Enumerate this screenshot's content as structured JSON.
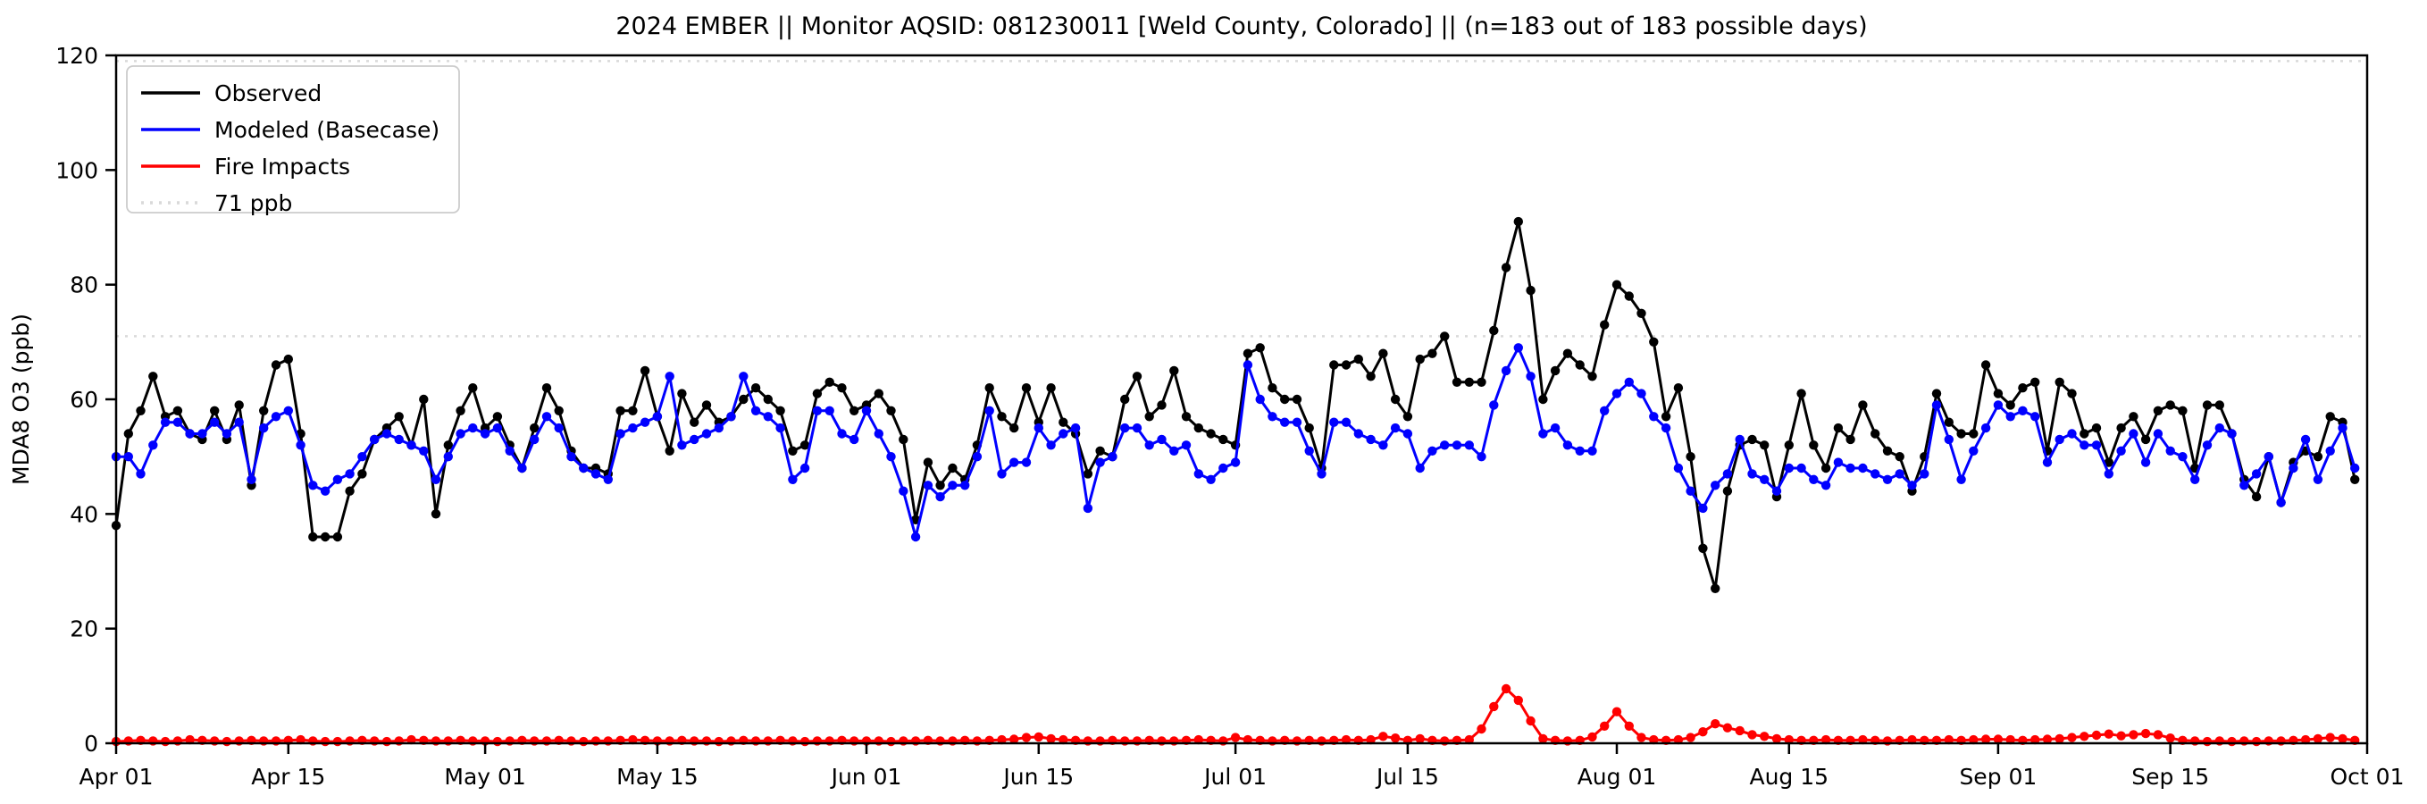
{
  "chart_data": {
    "type": "line",
    "title": "2024 EMBER || Monitor AQSID: 081230011 [Weld County, Colorado] || (n=183 out of 183 possible days)",
    "xlabel": "",
    "ylabel": "MDA8 O3 (ppb)",
    "ylim": [
      0,
      120
    ],
    "yticks": [
      0,
      20,
      40,
      60,
      80,
      100,
      120
    ],
    "n_days": 183,
    "date_range": "Apr 01 - Sep 30",
    "grid": false,
    "legend_position": "upper left",
    "xticks": [
      {
        "label": "Apr 01",
        "day": 0
      },
      {
        "label": "Apr 15",
        "day": 14
      },
      {
        "label": "May 01",
        "day": 30
      },
      {
        "label": "May 15",
        "day": 44
      },
      {
        "label": "Jun 01",
        "day": 61
      },
      {
        "label": "Jun 15",
        "day": 75
      },
      {
        "label": "Jul 01",
        "day": 91
      },
      {
        "label": "Jul 15",
        "day": 105
      },
      {
        "label": "Aug 01",
        "day": 122
      },
      {
        "label": "Aug 15",
        "day": 136
      },
      {
        "label": "Sep 01",
        "day": 153
      },
      {
        "label": "Sep 15",
        "day": 167
      },
      {
        "label": "Oct 01",
        "day": 183
      }
    ],
    "reference_lines": [
      {
        "label": "71 ppb",
        "value": 71,
        "color": "#d9d9d9",
        "style": "dotted"
      },
      {
        "label": "",
        "value": 119,
        "color": "#d9d9d9",
        "style": "dotted"
      }
    ],
    "legend": [
      {
        "label": "Observed",
        "color": "#000000",
        "style": "solid"
      },
      {
        "label": "Modeled (Basecase)",
        "color": "#0000ff",
        "style": "solid"
      },
      {
        "label": "Fire Impacts",
        "color": "#ff0000",
        "style": "solid"
      },
      {
        "label": "71 ppb",
        "color": "#d9d9d9",
        "style": "dotted"
      }
    ],
    "series": [
      {
        "name": "Observed",
        "color": "#000000",
        "values": [
          38,
          54,
          58,
          64,
          57,
          58,
          54,
          53,
          58,
          53,
          59,
          45,
          58,
          66,
          67,
          54,
          36,
          36,
          36,
          44,
          47,
          53,
          55,
          57,
          52,
          60,
          40,
          52,
          58,
          62,
          55,
          57,
          52,
          48,
          55,
          62,
          58,
          51,
          48,
          48,
          47,
          58,
          58,
          65,
          57,
          51,
          61,
          56,
          59,
          56,
          57,
          60,
          62,
          60,
          58,
          51,
          52,
          61,
          63,
          62,
          58,
          59,
          61,
          58,
          53,
          39,
          49,
          45,
          48,
          46,
          52,
          62,
          57,
          55,
          62,
          56,
          62,
          56,
          54,
          47,
          51,
          50,
          60,
          64,
          57,
          59,
          65,
          57,
          55,
          54,
          53,
          52,
          68,
          69,
          62,
          60,
          60,
          55,
          48,
          66,
          66,
          67,
          64,
          68,
          60,
          57,
          67,
          68,
          71,
          63,
          63,
          63,
          72,
          83,
          91,
          79,
          60,
          65,
          68,
          66,
          64,
          73,
          80,
          78,
          75,
          70,
          57,
          62,
          50,
          34,
          27,
          44,
          52,
          53,
          52,
          43,
          52,
          61,
          52,
          48,
          55,
          53,
          59,
          54,
          51,
          50,
          44,
          50,
          61,
          56,
          54,
          54,
          66,
          61,
          59,
          62,
          63,
          51,
          63,
          61,
          54,
          55,
          49,
          55,
          57,
          53,
          58,
          59,
          58,
          48,
          59,
          59,
          54,
          46,
          43,
          50,
          42,
          49,
          51,
          50,
          57,
          56,
          46
        ]
      },
      {
        "name": "Modeled (Basecase)",
        "color": "#0000ff",
        "values": [
          50,
          50,
          47,
          52,
          56,
          56,
          54,
          54,
          56,
          54,
          56,
          46,
          55,
          57,
          58,
          52,
          45,
          44,
          46,
          47,
          50,
          53,
          54,
          53,
          52,
          51,
          46,
          50,
          54,
          55,
          54,
          55,
          51,
          48,
          53,
          57,
          55,
          50,
          48,
          47,
          46,
          54,
          55,
          56,
          57,
          64,
          52,
          53,
          54,
          55,
          57,
          64,
          58,
          57,
          55,
          46,
          48,
          58,
          58,
          54,
          53,
          58,
          54,
          50,
          44,
          36,
          45,
          43,
          45,
          45,
          50,
          58,
          47,
          49,
          49,
          55,
          52,
          54,
          55,
          41,
          49,
          50,
          55,
          55,
          52,
          53,
          51,
          52,
          47,
          46,
          48,
          49,
          66,
          60,
          57,
          56,
          56,
          51,
          47,
          56,
          56,
          54,
          53,
          52,
          55,
          54,
          48,
          51,
          52,
          52,
          52,
          50,
          59,
          65,
          69,
          64,
          54,
          55,
          52,
          51,
          51,
          58,
          61,
          63,
          61,
          57,
          55,
          48,
          44,
          41,
          45,
          47,
          53,
          47,
          46,
          44,
          48,
          48,
          46,
          45,
          49,
          48,
          48,
          47,
          46,
          47,
          45,
          47,
          59,
          53,
          46,
          51,
          55,
          59,
          57,
          58,
          57,
          49,
          53,
          54,
          52,
          52,
          47,
          51,
          54,
          49,
          54,
          51,
          50,
          46,
          52,
          55,
          54,
          45,
          47,
          50,
          42,
          48,
          53,
          46,
          51,
          55,
          48
        ]
      },
      {
        "name": "Fire Impacts",
        "color": "#ff0000",
        "values": [
          0.3,
          0.4,
          0.5,
          0.4,
          0.3,
          0.4,
          0.6,
          0.5,
          0.4,
          0.3,
          0.4,
          0.5,
          0.4,
          0.4,
          0.5,
          0.6,
          0.4,
          0.3,
          0.3,
          0.4,
          0.5,
          0.4,
          0.3,
          0.4,
          0.6,
          0.5,
          0.4,
          0.4,
          0.5,
          0.4,
          0.4,
          0.3,
          0.4,
          0.5,
          0.4,
          0.4,
          0.5,
          0.4,
          0.3,
          0.4,
          0.4,
          0.5,
          0.6,
          0.5,
          0.4,
          0.4,
          0.5,
          0.4,
          0.4,
          0.3,
          0.4,
          0.5,
          0.4,
          0.4,
          0.5,
          0.4,
          0.3,
          0.4,
          0.4,
          0.5,
          0.4,
          0.4,
          0.4,
          0.3,
          0.4,
          0.4,
          0.5,
          0.4,
          0.4,
          0.5,
          0.4,
          0.5,
          0.6,
          0.7,
          1.0,
          1.1,
          0.8,
          0.6,
          0.5,
          0.4,
          0.4,
          0.5,
          0.4,
          0.4,
          0.5,
          0.4,
          0.4,
          0.5,
          0.6,
          0.5,
          0.4,
          1.0,
          0.6,
          0.5,
          0.4,
          0.5,
          0.4,
          0.5,
          0.4,
          0.5,
          0.6,
          0.5,
          0.6,
          1.2,
          0.9,
          0.5,
          0.8,
          0.5,
          0.4,
          0.5,
          0.6,
          2.5,
          6.4,
          9.5,
          7.5,
          3.9,
          0.8,
          0.5,
          0.4,
          0.5,
          1.1,
          3.0,
          5.5,
          3.0,
          1.0,
          0.6,
          0.5,
          0.6,
          1.0,
          2.0,
          3.4,
          2.7,
          2.2,
          1.5,
          1.2,
          0.8,
          0.6,
          0.5,
          0.5,
          0.6,
          0.5,
          0.5,
          0.6,
          0.5,
          0.4,
          0.5,
          0.6,
          0.5,
          0.5,
          0.6,
          0.5,
          0.6,
          0.7,
          0.7,
          0.6,
          0.5,
          0.6,
          0.7,
          0.8,
          1.0,
          1.2,
          1.4,
          1.6,
          1.3,
          1.5,
          1.7,
          1.5,
          0.9,
          0.5,
          0.4,
          0.3,
          0.4,
          0.3,
          0.4,
          0.3,
          0.4,
          0.4,
          0.5,
          0.6,
          0.8,
          1.0,
          0.8,
          0.5
        ]
      }
    ]
  }
}
